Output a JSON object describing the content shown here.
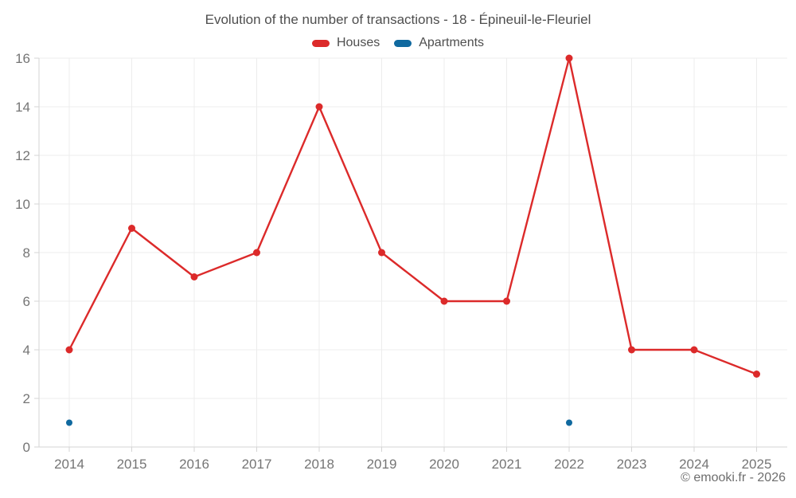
{
  "title": "Evolution of the number of transactions - 18 - Épineuil-le-Fleuriel",
  "copyright": "© emooki.fr - 2026",
  "colors": {
    "houses": "#dc2a2a",
    "apartments": "#10699f",
    "gridline": "#ececec",
    "axis": "#d4d4d4",
    "tick_label": "#757575",
    "title_text": "#4e4e4e"
  },
  "chart_data": {
    "type": "line",
    "x": [
      2014,
      2015,
      2016,
      2017,
      2018,
      2019,
      2020,
      2021,
      2022,
      2023,
      2024,
      2025
    ],
    "series": [
      {
        "name": "Houses",
        "color": "#dc2a2a",
        "values": [
          4,
          9,
          7,
          8,
          14,
          8,
          6,
          6,
          16,
          4,
          4,
          3
        ]
      },
      {
        "name": "Apartments",
        "color": "#10699f",
        "values": [
          1,
          null,
          null,
          null,
          null,
          null,
          null,
          null,
          1,
          null,
          null,
          null
        ]
      }
    ],
    "ylim": [
      0,
      16
    ],
    "yticks": [
      0,
      2,
      4,
      6,
      8,
      10,
      12,
      14,
      16
    ],
    "grid": true,
    "legend_position": "top",
    "title": "Evolution of the number of transactions - 18 - Épineuil-le-Fleuriel"
  }
}
